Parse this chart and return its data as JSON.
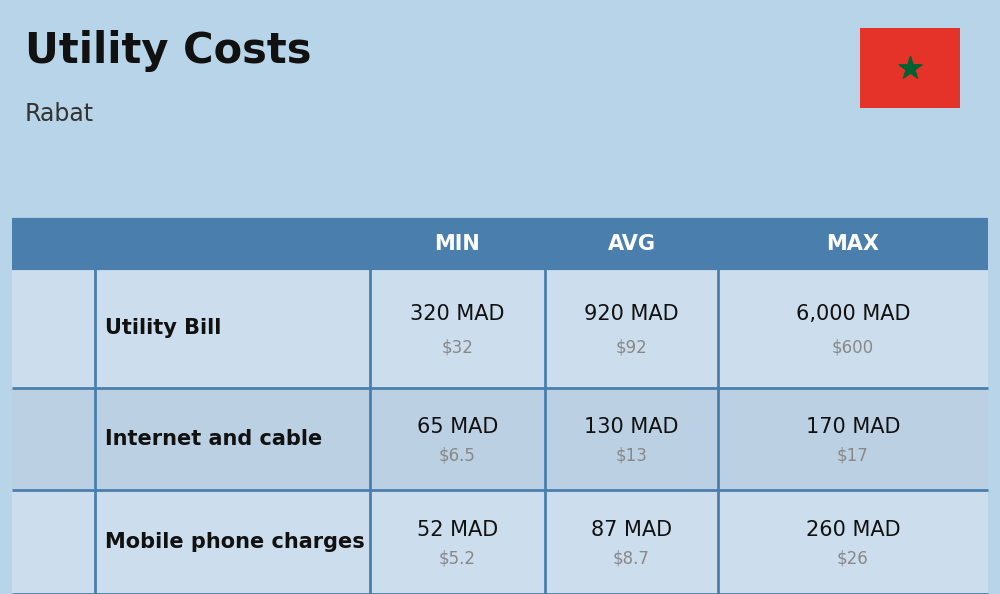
{
  "title": "Utility Costs",
  "subtitle": "Rabat",
  "background_color": "#b8d4e8",
  "header_bg_color": "#4a7fad",
  "header_text_color": "#ffffff",
  "row_bg_color_1": "#ccdded",
  "row_bg_color_2": "#bcd0e3",
  "divider_color": "#4a7fad",
  "flag_red": "#e63329",
  "flag_green": "#006233",
  "title_fontsize": 30,
  "subtitle_fontsize": 17,
  "header_fontsize": 15,
  "row_name_fontsize": 15,
  "row_value_fontsize": 15,
  "row_usd_fontsize": 12,
  "rows": [
    {
      "name": "Utility Bill",
      "min_mad": "320 MAD",
      "min_usd": "$32",
      "avg_mad": "920 MAD",
      "avg_usd": "$92",
      "max_mad": "6,000 MAD",
      "max_usd": "$600"
    },
    {
      "name": "Internet and cable",
      "min_mad": "65 MAD",
      "min_usd": "$6.5",
      "avg_mad": "130 MAD",
      "avg_usd": "$13",
      "max_mad": "170 MAD",
      "max_usd": "$17"
    },
    {
      "name": "Mobile phone charges",
      "min_mad": "52 MAD",
      "min_usd": "$5.2",
      "avg_mad": "87 MAD",
      "avg_usd": "$8.7",
      "max_mad": "260 MAD",
      "max_usd": "$26"
    }
  ]
}
